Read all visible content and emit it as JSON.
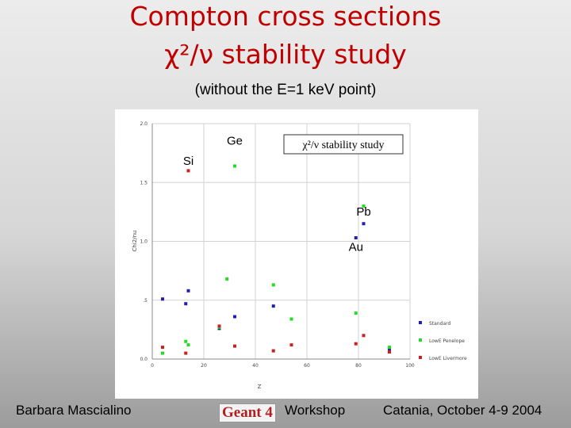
{
  "slide": {
    "title_line1": "Compton cross sections",
    "title_line2": "χ²/ν stability study",
    "subtitle": "(without the E=1 keV point)",
    "footer_author": "Barbara Mascialino",
    "footer_logo": "Geant 4",
    "footer_workshop": "Workshop",
    "footer_conference": "Catania, October 4-9 2004"
  },
  "colors": {
    "title": "#c00000",
    "standard": "#1f1fb0",
    "penelope": "#22dd22",
    "livermore": "#cc2020"
  },
  "chart_data": {
    "type": "scatter",
    "title": "χ²/ν stability study",
    "xlabel": "Z",
    "ylabel": "Chi2/nu",
    "xlim": [
      0,
      100
    ],
    "ylim": [
      0,
      2.0
    ],
    "xticks": [
      0,
      20,
      40,
      60,
      80,
      100
    ],
    "yticks": [
      0.0,
      0.5,
      1.0,
      1.5,
      2.0
    ],
    "ytick_labels": [
      "0.0",
      ".5",
      "1.0",
      "1.5",
      "2.0"
    ],
    "grid": true,
    "legend": "right",
    "annotations": [
      {
        "text": "Si",
        "x": 14,
        "y": 1.65
      },
      {
        "text": "Ge",
        "x": 32,
        "y": 1.82
      },
      {
        "text": "Pb",
        "x": 82,
        "y": 1.22
      },
      {
        "text": "Au",
        "x": 79,
        "y": 0.92
      }
    ],
    "series": [
      {
        "name": "Standard",
        "color": "#1f1fb0",
        "points": [
          [
            4,
            0.51
          ],
          [
            13,
            0.47
          ],
          [
            14,
            0.58
          ],
          [
            26,
            0.26
          ],
          [
            32,
            0.36
          ],
          [
            47,
            0.45
          ],
          [
            79,
            1.03
          ],
          [
            82,
            1.15
          ],
          [
            92,
            0.08
          ]
        ]
      },
      {
        "name": "LowE Penelope",
        "color": "#22dd22",
        "points": [
          [
            4,
            0.05
          ],
          [
            13,
            0.15
          ],
          [
            14,
            0.12
          ],
          [
            26,
            0.27
          ],
          [
            29,
            0.68
          ],
          [
            32,
            1.64
          ],
          [
            47,
            0.63
          ],
          [
            54,
            0.34
          ],
          [
            79,
            0.39
          ],
          [
            82,
            1.3
          ],
          [
            92,
            0.1
          ]
        ]
      },
      {
        "name": "LowE Livermore",
        "color": "#cc2020",
        "points": [
          [
            4,
            0.1
          ],
          [
            13,
            0.05
          ],
          [
            14,
            1.6
          ],
          [
            26,
            0.28
          ],
          [
            32,
            0.11
          ],
          [
            47,
            0.07
          ],
          [
            54,
            0.12
          ],
          [
            79,
            0.13
          ],
          [
            82,
            0.2
          ],
          [
            92,
            0.06
          ]
        ]
      }
    ]
  }
}
